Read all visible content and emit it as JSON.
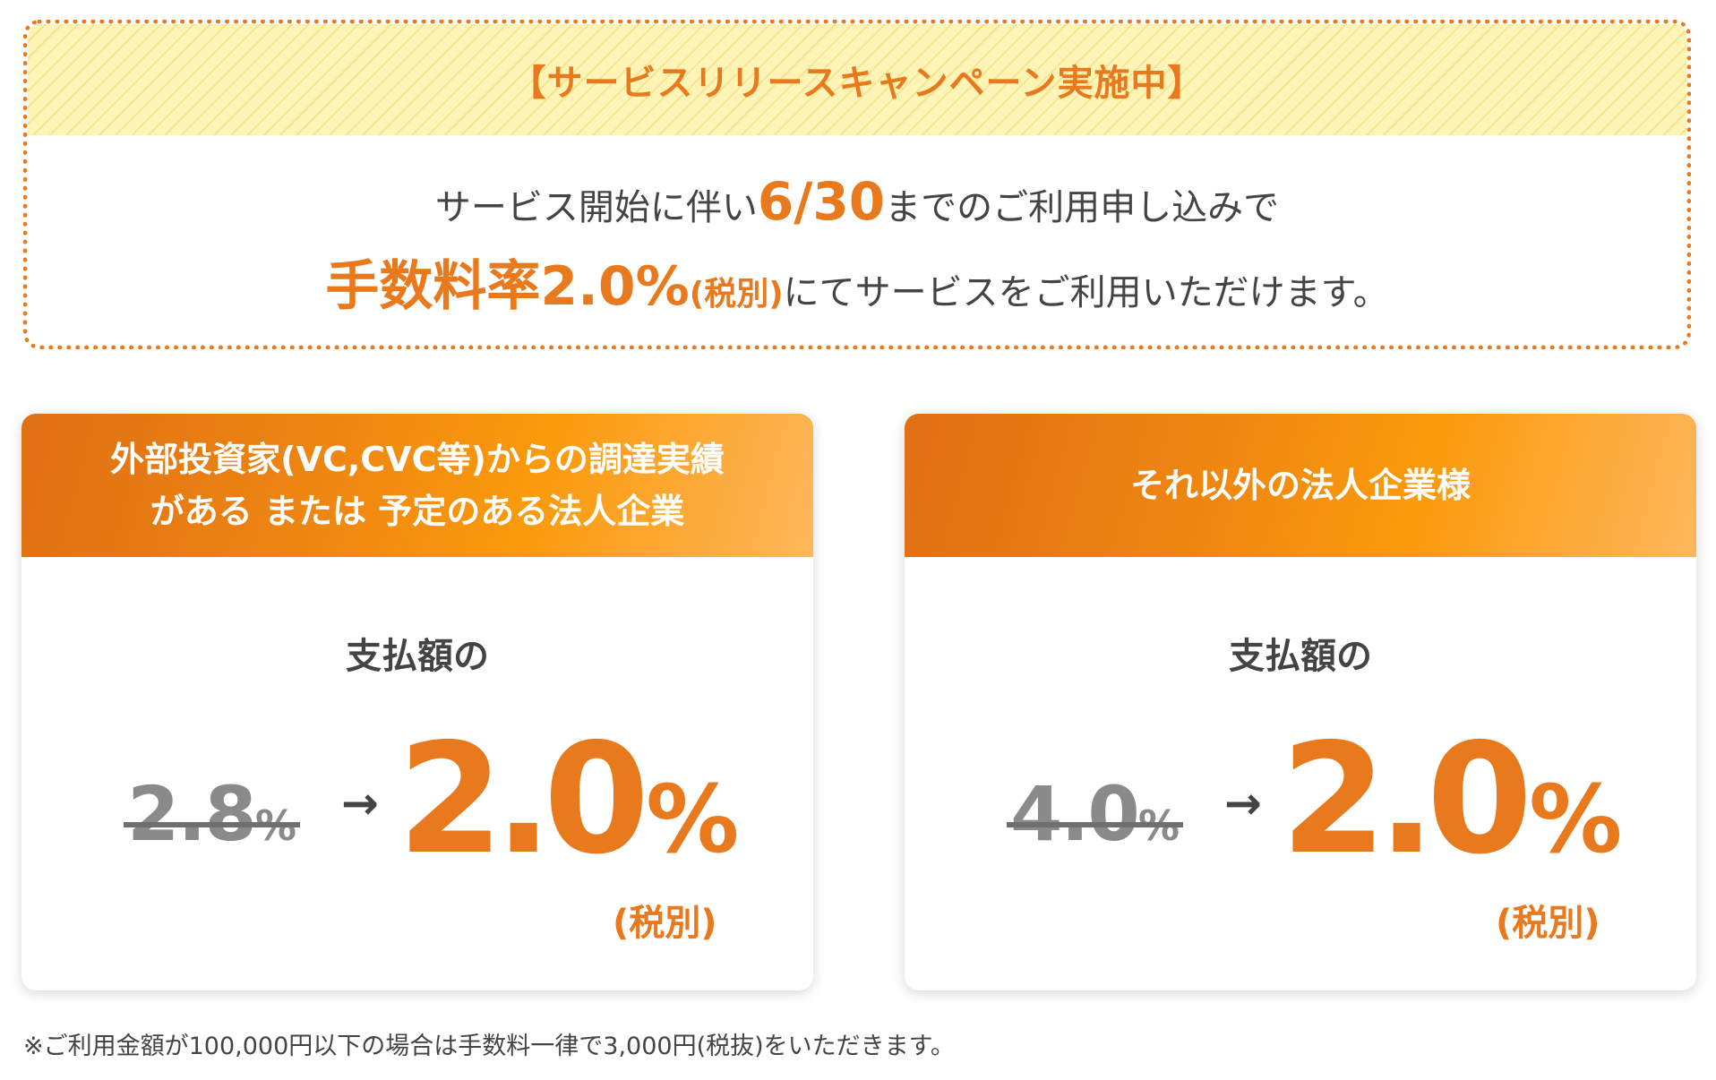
{
  "campaign": {
    "title": "【サービスリリースキャンペーン実施中】",
    "line1_prefix": "サービス開始に伴い",
    "line1_highlight": "6/30",
    "line1_suffix": "までのご利用申し込みで",
    "line2_highlight": "手数料率2.0%",
    "line2_tax": "(税別)",
    "line2_suffix": "にてサービスをご利用いただけます。"
  },
  "plans": [
    {
      "title_line1": "外部投資家(VC,CVC等)からの調達実績",
      "title_line2": "がある または 予定のある法人企業",
      "label": "支払額の",
      "old_rate": "2.8",
      "old_unit": "%",
      "arrow": "→",
      "new_rate": "2.0",
      "new_unit": "%",
      "tax_note": "(税別)"
    },
    {
      "title_line1": "それ以外の法人企業様",
      "label": "支払額の",
      "old_rate": "4.0",
      "old_unit": "%",
      "arrow": "→",
      "new_rate": "2.0",
      "new_unit": "%",
      "tax_note": "(税別)"
    }
  ],
  "footnote": "※ご利用金額が100,000円以下の場合は手数料一律で3,000円(税抜)をいただきます。",
  "colors": {
    "accent": "#e8791c",
    "banner_yellow": "#fdf4b6",
    "strike_gray": "#8a8a8a",
    "text": "#444444"
  }
}
